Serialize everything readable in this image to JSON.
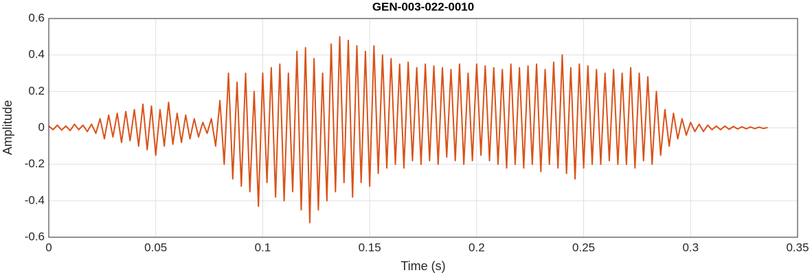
{
  "chart_data": {
    "type": "line",
    "title": "GEN-003-022-0010",
    "xlabel": "Time (s)",
    "ylabel": "Amplitude",
    "color": "#d95319",
    "grid": true,
    "xlim": [
      0,
      0.35
    ],
    "xticks": [
      0,
      0.05,
      0.1,
      0.15,
      0.2,
      0.25,
      0.3,
      0.35
    ],
    "ylim": [
      -0.6,
      0.6
    ],
    "yticks": [
      -0.6,
      -0.4,
      -0.2,
      0,
      0.2,
      0.4,
      0.6
    ],
    "x": [
      0,
      0.002,
      0.004,
      0.006,
      0.008,
      0.01,
      0.012,
      0.014,
      0.016,
      0.018,
      0.02,
      0.022,
      0.024,
      0.026,
      0.028,
      0.03,
      0.032,
      0.034,
      0.036,
      0.038,
      0.04,
      0.042,
      0.044,
      0.046,
      0.048,
      0.05,
      0.052,
      0.054,
      0.056,
      0.058,
      0.06,
      0.062,
      0.064,
      0.066,
      0.068,
      0.07,
      0.072,
      0.074,
      0.076,
      0.078,
      0.08,
      0.082,
      0.084,
      0.086,
      0.088,
      0.09,
      0.092,
      0.094,
      0.096,
      0.098,
      0.1,
      0.102,
      0.104,
      0.106,
      0.108,
      0.11,
      0.112,
      0.114,
      0.116,
      0.118,
      0.12,
      0.122,
      0.124,
      0.126,
      0.128,
      0.13,
      0.132,
      0.134,
      0.136,
      0.138,
      0.14,
      0.142,
      0.144,
      0.146,
      0.148,
      0.15,
      0.152,
      0.154,
      0.156,
      0.158,
      0.16,
      0.162,
      0.164,
      0.166,
      0.168,
      0.17,
      0.172,
      0.174,
      0.176,
      0.178,
      0.18,
      0.182,
      0.184,
      0.186,
      0.188,
      0.19,
      0.192,
      0.194,
      0.196,
      0.198,
      0.2,
      0.202,
      0.204,
      0.206,
      0.208,
      0.21,
      0.212,
      0.214,
      0.216,
      0.218,
      0.22,
      0.222,
      0.224,
      0.226,
      0.228,
      0.23,
      0.232,
      0.234,
      0.236,
      0.238,
      0.24,
      0.242,
      0.244,
      0.246,
      0.248,
      0.25,
      0.252,
      0.254,
      0.256,
      0.258,
      0.26,
      0.262,
      0.264,
      0.266,
      0.268,
      0.27,
      0.272,
      0.274,
      0.276,
      0.278,
      0.28,
      0.282,
      0.284,
      0.286,
      0.288,
      0.29,
      0.292,
      0.294,
      0.296,
      0.298,
      0.3,
      0.302,
      0.304,
      0.306,
      0.308,
      0.31,
      0.312,
      0.314,
      0.316,
      0.318,
      0.32,
      0.322,
      0.324,
      0.326,
      0.328,
      0.33,
      0.332,
      0.334,
      0.336
    ],
    "values": [
      0.01,
      -0.01,
      0.015,
      -0.012,
      0.01,
      -0.015,
      0.02,
      -0.01,
      0.015,
      -0.02,
      0.02,
      -0.03,
      0.05,
      -0.06,
      0.07,
      -0.05,
      0.08,
      -0.08,
      0.09,
      -0.07,
      0.1,
      -0.1,
      0.13,
      -0.12,
      0.12,
      -0.15,
      0.1,
      -0.1,
      0.14,
      -0.09,
      0.08,
      -0.08,
      0.07,
      -0.06,
      0.05,
      -0.05,
      0.03,
      -0.03,
      0.05,
      -0.1,
      0.15,
      -0.2,
      0.3,
      -0.28,
      0.25,
      -0.32,
      0.3,
      -0.35,
      0.2,
      -0.43,
      0.3,
      -0.3,
      0.33,
      -0.38,
      0.35,
      -0.4,
      0.3,
      -0.35,
      0.42,
      -0.45,
      0.44,
      -0.52,
      0.38,
      -0.45,
      0.3,
      -0.4,
      0.46,
      -0.35,
      0.5,
      -0.3,
      0.48,
      -0.38,
      0.45,
      -0.3,
      0.42,
      -0.32,
      0.45,
      -0.25,
      0.4,
      -0.22,
      0.38,
      -0.2,
      0.35,
      -0.22,
      0.36,
      -0.18,
      0.33,
      -0.2,
      0.35,
      -0.18,
      0.34,
      -0.2,
      0.33,
      -0.16,
      0.32,
      -0.18,
      0.35,
      -0.2,
      0.3,
      -0.18,
      0.35,
      -0.15,
      0.34,
      -0.18,
      0.33,
      -0.2,
      0.32,
      -0.22,
      0.35,
      -0.2,
      0.33,
      -0.22,
      0.34,
      -0.2,
      0.35,
      -0.24,
      0.32,
      -0.2,
      0.36,
      -0.22,
      0.4,
      -0.25,
      0.33,
      -0.28,
      0.35,
      -0.22,
      0.34,
      -0.2,
      0.32,
      -0.2,
      0.3,
      -0.18,
      0.32,
      -0.2,
      0.3,
      -0.2,
      0.33,
      -0.22,
      0.3,
      -0.18,
      0.28,
      -0.2,
      0.2,
      -0.15,
      0.1,
      -0.1,
      0.08,
      -0.06,
      0.05,
      -0.04,
      0.03,
      -0.02,
      0.02,
      -0.02,
      0.015,
      -0.01,
      0.01,
      -0.01,
      0.01,
      -0.008,
      0.008,
      -0.006,
      0.006,
      -0.005,
      0.005,
      -0.004,
      0.004,
      -0.003,
      0.002
    ]
  }
}
